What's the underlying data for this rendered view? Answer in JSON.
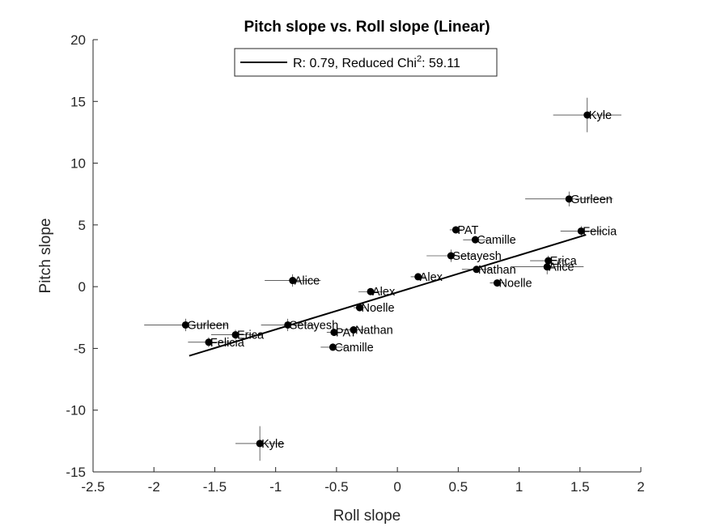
{
  "chart_data": {
    "type": "scatter",
    "title": "Pitch slope vs. Roll slope (Linear)",
    "xlabel": "Roll slope",
    "ylabel": "Pitch slope",
    "xlim": [
      -2.5,
      2
    ],
    "ylim": [
      -15,
      20
    ],
    "xticks": [
      "-2.5",
      "-2",
      "-1.5",
      "-1",
      "-0.5",
      "0",
      "0.5",
      "1",
      "1.5",
      "2"
    ],
    "yticks": [
      "-15",
      "-10",
      "-5",
      "0",
      "5",
      "10",
      "15",
      "20"
    ],
    "grid": false,
    "legend": {
      "position": "top-center",
      "text": "R: 0.79, Reduced Chi",
      "superscript": "2",
      "text_suffix": ": 59.11"
    },
    "fit_line": {
      "x": [
        -1.71,
        1.55
      ],
      "y": [
        -5.6,
        4.2
      ]
    },
    "points": [
      {
        "label": "Kyle",
        "x": 1.56,
        "y": 13.9,
        "xerr": 0.28,
        "yerr": 1.4
      },
      {
        "label": "Gurleen",
        "x": 1.41,
        "y": 7.1,
        "xerr": 0.36,
        "yerr": 0.6
      },
      {
        "label": "Felicia",
        "x": 1.51,
        "y": 4.5,
        "xerr": 0.17,
        "yerr": 0.4
      },
      {
        "label": "PAT",
        "x": 0.48,
        "y": 4.6,
        "xerr": 0.05,
        "yerr": 0.3
      },
      {
        "label": "Camille",
        "x": 0.64,
        "y": 3.8,
        "xerr": 0.1,
        "yerr": 0.3
      },
      {
        "label": "Setayesh",
        "x": 0.44,
        "y": 2.5,
        "xerr": 0.2,
        "yerr": 0.5
      },
      {
        "label": "Erica",
        "x": 1.24,
        "y": 2.1,
        "xerr": 0.15,
        "yerr": 0.4
      },
      {
        "label": "Alice",
        "x": 1.23,
        "y": 1.6,
        "xerr": 0.3,
        "yerr": 0.6
      },
      {
        "label": "Nathan",
        "x": 0.65,
        "y": 1.4,
        "xerr": 0.12,
        "yerr": 0.2
      },
      {
        "label": "Alex",
        "x": 0.17,
        "y": 0.8,
        "xerr": 0.06,
        "yerr": 0.2
      },
      {
        "label": "Noelle",
        "x": 0.82,
        "y": 0.3,
        "xerr": 0.06,
        "yerr": 0.2
      },
      {
        "label": "Alice",
        "x": -0.86,
        "y": 0.5,
        "xerr": 0.23,
        "yerr": 0.5
      },
      {
        "label": "Alex",
        "x": -0.22,
        "y": -0.4,
        "xerr": 0.1,
        "yerr": 0.2
      },
      {
        "label": "Noelle",
        "x": -0.31,
        "y": -1.7,
        "xerr": 0.05,
        "yerr": 0.2
      },
      {
        "label": "Gurleen",
        "x": -1.74,
        "y": -3.1,
        "xerr": 0.34,
        "yerr": 0.5
      },
      {
        "label": "Setayesh",
        "x": -0.9,
        "y": -3.1,
        "xerr": 0.22,
        "yerr": 0.5
      },
      {
        "label": "Erica",
        "x": -1.33,
        "y": -3.9,
        "xerr": 0.2,
        "yerr": 0.4
      },
      {
        "label": "Nathan",
        "x": -0.36,
        "y": -3.5,
        "xerr": 0.1,
        "yerr": 0.3
      },
      {
        "label": "PAT",
        "x": -0.52,
        "y": -3.7,
        "xerr": 0.06,
        "yerr": 0.3
      },
      {
        "label": "Felicia",
        "x": -1.55,
        "y": -4.5,
        "xerr": 0.17,
        "yerr": 0.4
      },
      {
        "label": "Camille",
        "x": -0.53,
        "y": -4.9,
        "xerr": 0.1,
        "yerr": 0.3
      },
      {
        "label": "Kyle",
        "x": -1.13,
        "y": -12.7,
        "xerr": 0.2,
        "yerr": 1.4
      }
    ]
  }
}
